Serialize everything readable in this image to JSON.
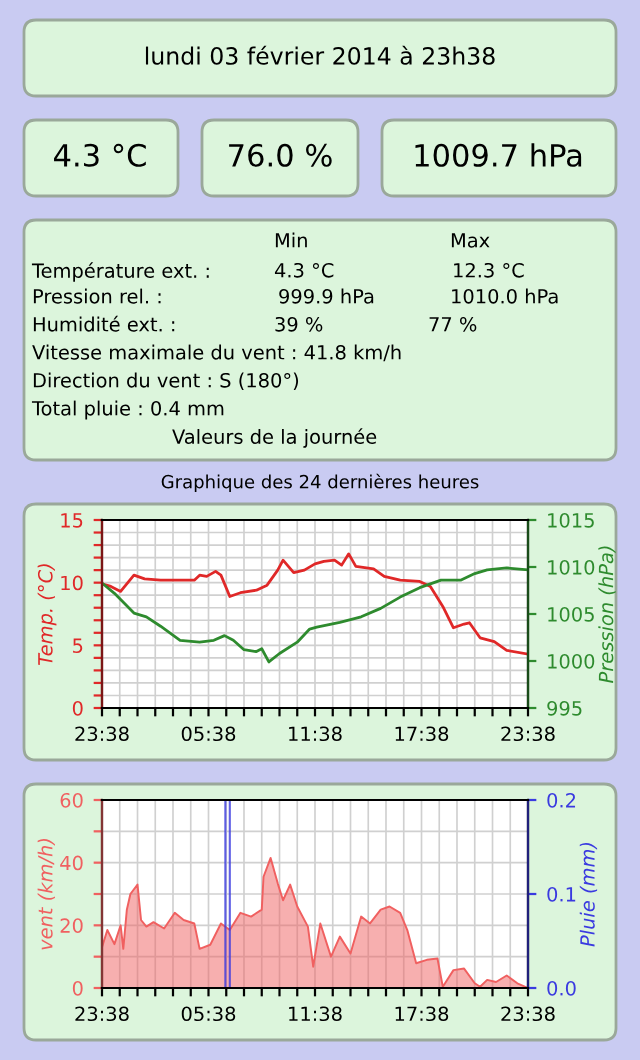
{
  "chart_data": [
    {
      "type": "other",
      "annotations": [
        "lundi 03 février 2014 à 23h38",
        "4.3 °C",
        "76.0 %",
        "1009.7 hPa",
        "Min",
        "Max",
        "Température ext. :",
        "4.3 °C",
        "12.3 °C",
        "Pression rel. :",
        "999.9 hPa",
        "1010.0 hPa",
        "Humidité ext. :",
        "39 %",
        "77 %",
        "Vitesse maximale du vent : 41.8 km/h",
        "Direction du vent : S (180°)",
        "Total pluie : 0.4 mm",
        "Valeurs de la journée"
      ]
    },
    {
      "type": "line",
      "title": "Graphique des 24 dernières heures",
      "ylabel": "Temp. (°C)",
      "y2label": "Pression (hPa)",
      "grid": true,
      "xlim": [
        "2014-02-02T23:38",
        "2014-02-03T23:38"
      ],
      "xticks": [
        {
          "value": "2014-02-02T23:38",
          "label": "23:38"
        },
        {
          "value": "2014-02-03T00:38",
          "label": null
        },
        {
          "value": "2014-02-03T01:38",
          "label": null
        },
        {
          "value": "2014-02-03T02:38",
          "label": null
        },
        {
          "value": "2014-02-03T03:38",
          "label": null
        },
        {
          "value": "2014-02-03T04:38",
          "label": null
        },
        {
          "value": "2014-02-03T05:38",
          "label": "05:38"
        },
        {
          "value": "2014-02-03T06:38",
          "label": null
        },
        {
          "value": "2014-02-03T07:38",
          "label": null
        },
        {
          "value": "2014-02-03T08:38",
          "label": null
        },
        {
          "value": "2014-02-03T09:38",
          "label": null
        },
        {
          "value": "2014-02-03T10:38",
          "label": null
        },
        {
          "value": "2014-02-03T11:38",
          "label": "11:38"
        },
        {
          "value": "2014-02-03T12:38",
          "label": null
        },
        {
          "value": "2014-02-03T13:38",
          "label": null
        },
        {
          "value": "2014-02-03T14:38",
          "label": null
        },
        {
          "value": "2014-02-03T15:38",
          "label": null
        },
        {
          "value": "2014-02-03T16:38",
          "label": null
        },
        {
          "value": "2014-02-03T17:38",
          "label": "17:38"
        },
        {
          "value": "2014-02-03T18:38",
          "label": null
        },
        {
          "value": "2014-02-03T19:38",
          "label": null
        },
        {
          "value": "2014-02-03T20:38",
          "label": null
        },
        {
          "value": "2014-02-03T21:38",
          "label": null
        },
        {
          "value": "2014-02-03T22:38",
          "label": null
        },
        {
          "value": "2014-02-03T23:38",
          "label": "23:38"
        }
      ],
      "ylim": [
        0,
        15
      ],
      "yticks": [
        0,
        {
          "value": 1,
          "label": null
        },
        {
          "value": 2,
          "label": null
        },
        {
          "value": 3,
          "label": null
        },
        {
          "value": 4,
          "label": null
        },
        5,
        {
          "value": 6,
          "label": null
        },
        {
          "value": 7,
          "label": null
        },
        {
          "value": 8,
          "label": null
        },
        {
          "value": 9,
          "label": null
        },
        10,
        {
          "value": 11,
          "label": null
        },
        {
          "value": 12,
          "label": null
        },
        {
          "value": 13,
          "label": null
        },
        {
          "value": 14,
          "label": null
        },
        15
      ],
      "y2lim": [
        995,
        1015
      ],
      "y2ticks": [
        995,
        1000,
        1005,
        1010,
        1015
      ],
      "series": [
        {
          "color": "#e02828",
          "x": [
            "2014-02-02T23:38",
            "2014-02-03T00:08",
            "2014-02-03T00:41",
            "2014-02-03T01:26",
            "2014-02-03T02:02",
            "2014-02-03T02:56",
            "2014-02-03T04:50",
            "2014-02-03T05:08",
            "2014-02-03T05:32",
            "2014-02-03T06:02",
            "2014-02-03T06:20",
            "2014-02-03T06:50",
            "2014-02-03T07:26",
            "2014-02-03T08:20",
            "2014-02-03T08:56",
            "2014-02-03T09:32",
            "2014-02-03T09:50",
            "2014-02-03T10:26",
            "2014-02-03T11:02",
            "2014-02-03T11:38",
            "2014-02-03T12:08",
            "2014-02-03T12:44",
            "2014-02-03T13:08",
            "2014-02-03T13:32",
            "2014-02-03T13:56",
            "2014-02-03T14:56",
            "2014-02-03T15:32",
            "2014-02-03T16:26",
            "2014-02-03T17:32",
            "2014-02-03T18:08",
            "2014-02-03T18:50",
            "2014-02-03T19:26",
            "2014-02-03T20:02",
            "2014-02-03T20:20",
            "2014-02-03T20:56",
            "2014-02-03T21:44",
            "2014-02-03T22:26",
            "2014-02-03T23:38"
          ],
          "values": [
            9.9,
            9.7,
            9.3,
            10.6,
            10.3,
            10.2,
            10.2,
            10.6,
            10.5,
            10.9,
            10.6,
            8.9,
            9.2,
            9.4,
            9.8,
            11.0,
            11.8,
            10.8,
            11.0,
            11.5,
            11.7,
            11.8,
            11.4,
            12.3,
            11.3,
            11.1,
            10.5,
            10.2,
            10.1,
            9.7,
            8.1,
            6.4,
            6.7,
            6.8,
            5.6,
            5.3,
            4.6,
            4.3
          ]
        },
        {
          "color": "#2e8b2e",
          "axis": "y2",
          "x": [
            "2014-02-02T23:38",
            "2014-02-03T00:20",
            "2014-02-03T01:26",
            "2014-02-03T02:08",
            "2014-02-03T02:56",
            "2014-02-03T04:02",
            "2014-02-03T05:08",
            "2014-02-03T05:56",
            "2014-02-03T06:32",
            "2014-02-03T07:02",
            "2014-02-03T07:38",
            "2014-02-03T08:20",
            "2014-02-03T08:38",
            "2014-02-03T09:02",
            "2014-02-03T09:38",
            "2014-02-03T10:38",
            "2014-02-03T11:20",
            "2014-02-03T11:44",
            "2014-02-03T13:02",
            "2014-02-03T14:14",
            "2014-02-03T15:20",
            "2014-02-03T16:26",
            "2014-02-03T17:32",
            "2014-02-03T18:44",
            "2014-02-03T19:50",
            "2014-02-03T20:38",
            "2014-02-03T21:20",
            "2014-02-03T22:26",
            "2014-02-03T23:38"
          ],
          "values": [
            1008.3,
            1007.2,
            1005.1,
            1004.7,
            1003.7,
            1002.2,
            1002.0,
            1002.2,
            1002.7,
            1002.2,
            1001.2,
            1001.0,
            1001.3,
            999.9,
            1000.8,
            1002.0,
            1003.4,
            1003.6,
            1004.1,
            1004.7,
            1005.6,
            1006.8,
            1007.8,
            1008.6,
            1008.6,
            1009.3,
            1009.7,
            1009.9,
            1009.7
          ]
        }
      ]
    },
    {
      "type": "area",
      "ylabel": "vent (km/h)",
      "y2label": "Pluie (mm)",
      "grid": true,
      "xlim": [
        "2014-02-02T23:38",
        "2014-02-03T23:38"
      ],
      "xticks": [
        {
          "value": "2014-02-02T23:38",
          "label": "23:38"
        },
        {
          "value": "2014-02-03T00:38",
          "label": null
        },
        {
          "value": "2014-02-03T01:38",
          "label": null
        },
        {
          "value": "2014-02-03T02:38",
          "label": null
        },
        {
          "value": "2014-02-03T03:38",
          "label": null
        },
        {
          "value": "2014-02-03T04:38",
          "label": null
        },
        {
          "value": "2014-02-03T05:38",
          "label": "05:38"
        },
        {
          "value": "2014-02-03T06:38",
          "label": null
        },
        {
          "value": "2014-02-03T07:38",
          "label": null
        },
        {
          "value": "2014-02-03T08:38",
          "label": null
        },
        {
          "value": "2014-02-03T09:38",
          "label": null
        },
        {
          "value": "2014-02-03T10:38",
          "label": null
        },
        {
          "value": "2014-02-03T11:38",
          "label": "11:38"
        },
        {
          "value": "2014-02-03T12:38",
          "label": null
        },
        {
          "value": "2014-02-03T13:38",
          "label": null
        },
        {
          "value": "2014-02-03T14:38",
          "label": null
        },
        {
          "value": "2014-02-03T15:38",
          "label": null
        },
        {
          "value": "2014-02-03T16:38",
          "label": null
        },
        {
          "value": "2014-02-03T17:38",
          "label": "17:38"
        },
        {
          "value": "2014-02-03T18:38",
          "label": null
        },
        {
          "value": "2014-02-03T19:38",
          "label": null
        },
        {
          "value": "2014-02-03T20:38",
          "label": null
        },
        {
          "value": "2014-02-03T21:38",
          "label": null
        },
        {
          "value": "2014-02-03T22:38",
          "label": null
        },
        {
          "value": "2014-02-03T23:38",
          "label": "23:38"
        }
      ],
      "ylim": [
        0,
        60
      ],
      "yticks": [
        0,
        {
          "value": 10,
          "label": null
        },
        20,
        {
          "value": 30,
          "label": null
        },
        40,
        {
          "value": 50,
          "label": null
        },
        60
      ],
      "y2lim": [
        0,
        0.2
      ],
      "y2ticks": [
        {
          "value": 0,
          "label": "0.0"
        },
        0.1,
        0.2
      ],
      "series": [
        {
          "color": "#f06060",
          "x": [
            "2014-02-02T23:38",
            "2014-02-02T23:56",
            "2014-02-03T00:20",
            "2014-02-03T00:41",
            "2014-02-03T00:50",
            "2014-02-03T01:02",
            "2014-02-03T01:14",
            "2014-02-03T01:38",
            "2014-02-03T01:50",
            "2014-02-03T02:08",
            "2014-02-03T02:32",
            "2014-02-03T03:08",
            "2014-02-03T03:44",
            "2014-02-03T04:14",
            "2014-02-03T04:50",
            "2014-02-03T05:08",
            "2014-02-03T05:44",
            "2014-02-03T06:20",
            "2014-02-03T06:50",
            "2014-02-03T07:26",
            "2014-02-03T08:02",
            "2014-02-03T08:38",
            "2014-02-03T08:44",
            "2014-02-03T09:08",
            "2014-02-03T09:32",
            "2014-02-03T09:50",
            "2014-02-03T10:14",
            "2014-02-03T10:38",
            "2014-02-03T11:14",
            "2014-02-03T11:32",
            "2014-02-03T11:56",
            "2014-02-03T12:32",
            "2014-02-03T13:02",
            "2014-02-03T13:38",
            "2014-02-03T14:14",
            "2014-02-03T14:44",
            "2014-02-03T15:20",
            "2014-02-03T15:50",
            "2014-02-03T16:26",
            "2014-02-03T16:50",
            "2014-02-03T17:20",
            "2014-02-03T17:56",
            "2014-02-03T18:32",
            "2014-02-03T18:50",
            "2014-02-03T19:26",
            "2014-02-03T20:02",
            "2014-02-03T20:38",
            "2014-02-03T20:56",
            "2014-02-03T21:20",
            "2014-02-03T21:50",
            "2014-02-03T22:26",
            "2014-02-03T23:02",
            "2014-02-03T23:38"
          ],
          "values": [
            13,
            18.5,
            14,
            20,
            12.5,
            25,
            30,
            33,
            21.7,
            19.6,
            21,
            19,
            24,
            21.7,
            20.6,
            12.5,
            13.8,
            20.6,
            18.5,
            24,
            22.8,
            25,
            35.5,
            41.5,
            33.4,
            28,
            33,
            26,
            19.6,
            6.8,
            20.6,
            10,
            16.4,
            11,
            22.8,
            20.6,
            25,
            26,
            24,
            18.5,
            7.9,
            9,
            9.4,
            0.4,
            5.7,
            6.2,
            1.5,
            0.4,
            2.6,
            1.9,
            4,
            1.5,
            0
          ]
        },
        {
          "type": "bar",
          "color": "#3a3ae0",
          "axis": "y2",
          "x": [
            "2014-02-03T06:35",
            "2014-02-03T06:50"
          ],
          "values": [
            0.2,
            0.2
          ]
        }
      ]
    }
  ]
}
